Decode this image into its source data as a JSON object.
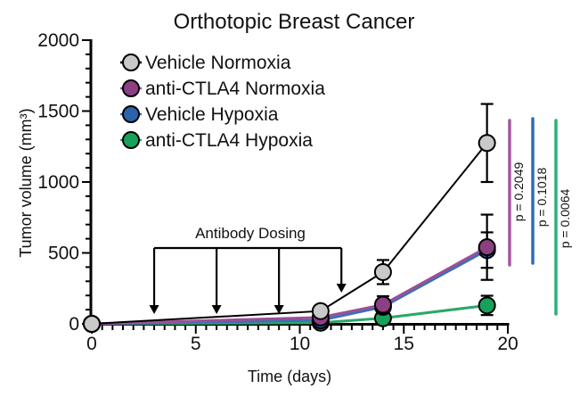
{
  "figure": {
    "background": "#ffffff",
    "title": "Orthotopic Breast Cancer"
  },
  "chart_data": {
    "type": "line",
    "title": "Orthotopic Breast Cancer",
    "xlabel": "Time (days)",
    "ylabel": "Tumor volume (mm³)",
    "xlim": [
      0,
      20
    ],
    "ylim": [
      0,
      2000
    ],
    "xticks": [
      0,
      5,
      10,
      15,
      20
    ],
    "yticks": [
      0,
      500,
      1000,
      1500,
      2000
    ],
    "x_minor_step": 0.5,
    "y_minor_step": 100,
    "grid": false,
    "legend_position": "upper-left-inside",
    "x": [
      0,
      11,
      14,
      19
    ],
    "series": [
      {
        "name": "Vehicle Normoxia",
        "marker_color": "#c9c9c9",
        "line_color": "#000000",
        "values": [
          0,
          90,
          365,
          1275
        ],
        "errors": [
          0,
          0,
          85,
          275
        ]
      },
      {
        "name": "anti-CTLA4 Normoxia",
        "marker_color": "#8c4084",
        "line_color": "#9d4f97",
        "values": [
          0,
          45,
          135,
          540
        ],
        "errors": [
          0,
          0,
          60,
          230
        ]
      },
      {
        "name": "Vehicle Hypoxia",
        "marker_color": "#2b63a9",
        "line_color": "#3f6fb5",
        "values": [
          0,
          25,
          120,
          520
        ],
        "errors": [
          0,
          0,
          40,
          125
        ]
      },
      {
        "name": "anti-CTLA4 Hypoxia",
        "marker_color": "#17a15b",
        "line_color": "#2aa768",
        "values": [
          0,
          8,
          40,
          130
        ],
        "errors": [
          0,
          0,
          20,
          68
        ]
      }
    ],
    "annotations": {
      "dosing": {
        "label": "Antibody Dosing",
        "days": [
          3,
          6,
          9,
          12
        ]
      },
      "p_values": [
        {
          "label": "p = 0.2049",
          "color": "#a4579e"
        },
        {
          "label": "p = 0.1018",
          "color": "#2e6db4"
        },
        {
          "label": "p = 0.0064",
          "color": "#2bb273"
        }
      ]
    },
    "style_colors": {
      "axis": "#000000",
      "error_bars": "#000000",
      "text": "#111111"
    }
  }
}
